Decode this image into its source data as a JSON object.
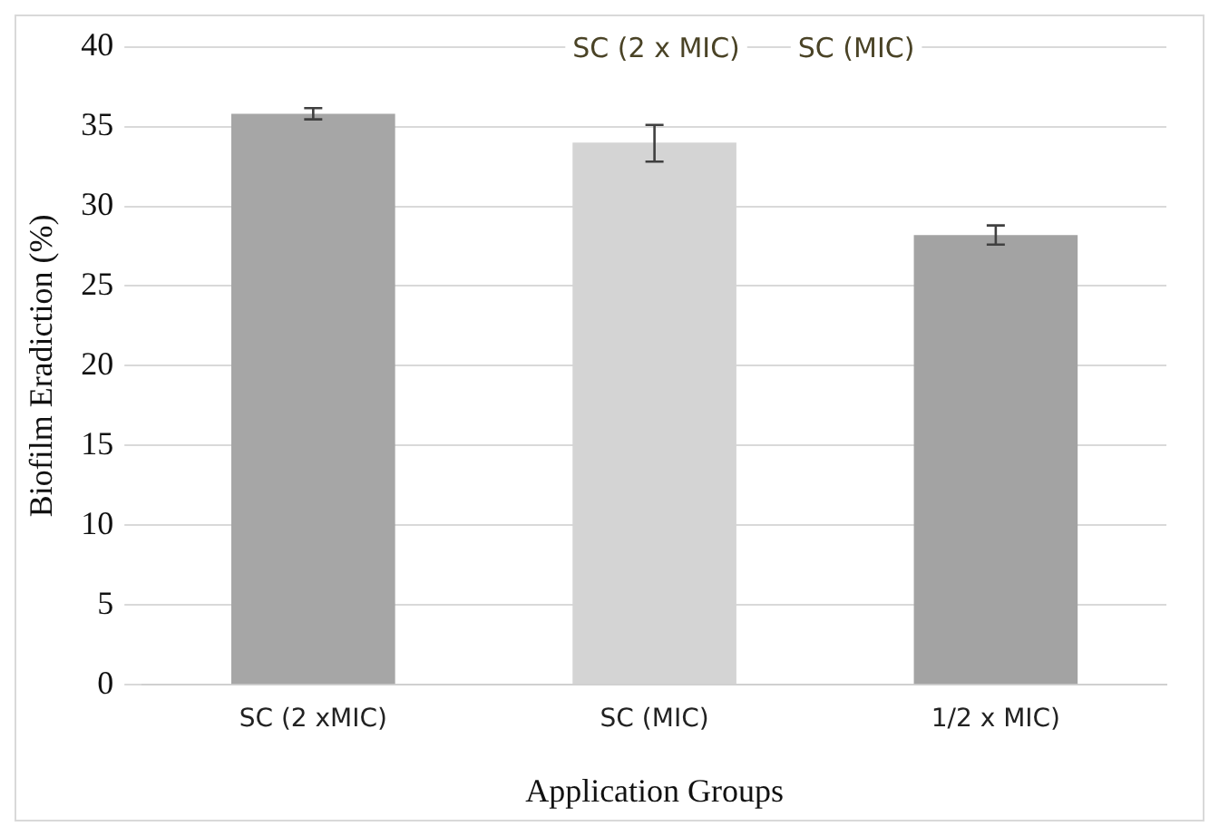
{
  "chart_data": {
    "type": "bar",
    "xlabel": "Application Groups",
    "ylabel": "Biofilm Eradiction (%)",
    "categories": [
      "SC (2 xMIC)",
      "SC (MIC)",
      "1/2 x MIC)"
    ],
    "values": [
      35.8,
      34.0,
      28.2
    ],
    "errors": [
      0.35,
      [
        32.8,
        35.1
      ],
      0.6
    ],
    "colors": [
      "#a6a6a6",
      "#d4d4d4",
      "#a3a3a3"
    ],
    "ylim": [
      0,
      40
    ],
    "yticks": [
      0,
      5,
      10,
      15,
      20,
      25,
      30,
      35,
      40
    ],
    "grid": "y",
    "annotations": [
      "SC (2 x MIC)",
      "SC (MIC)"
    ],
    "legend": false
  }
}
